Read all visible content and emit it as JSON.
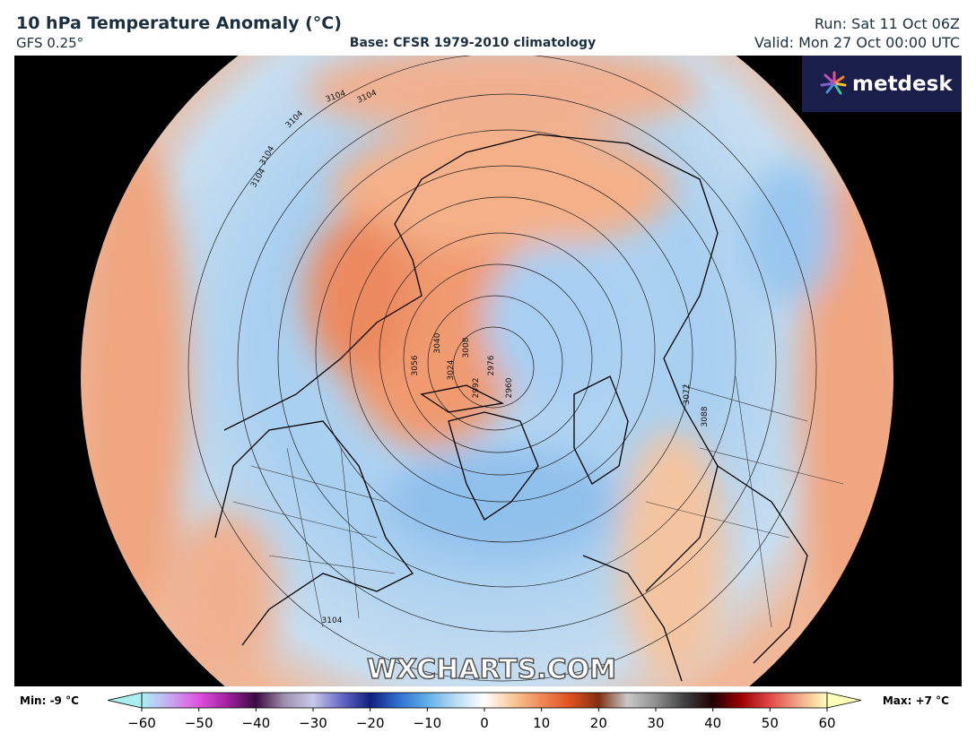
{
  "header": {
    "title": "10 hPa Temperature Anomaly (°C)",
    "model": "GFS 0.25°",
    "base": "Base: CFSR 1979-2010 climatology",
    "run": "Run: Sat 11 Oct 06Z",
    "valid": "Valid: Mon 27 Oct 00:00 UTC"
  },
  "logo": "metdesk",
  "watermark": "WXCHARTS.COM",
  "map": {
    "contour_labels": [
      "3104",
      "3104",
      "3104",
      "3104",
      "3104",
      "3056",
      "3040",
      "3024",
      "3008",
      "2992",
      "2976",
      "2960",
      "3072",
      "3088",
      "3104"
    ]
  },
  "colorbar": {
    "min_label": "Min: -9 °C",
    "max_label": "Max: +7 °C",
    "range": [
      -60,
      60
    ],
    "ticks": [
      {
        "value": -60,
        "label": "−60"
      },
      {
        "value": -50,
        "label": "−50"
      },
      {
        "value": -40,
        "label": "−40"
      },
      {
        "value": -30,
        "label": "−30"
      },
      {
        "value": -20,
        "label": "−20"
      },
      {
        "value": -10,
        "label": "−10"
      },
      0,
      10,
      20,
      30,
      40,
      50,
      60
    ],
    "colors": [
      "#a8f0f0",
      "#c8a8f0",
      "#e050e0",
      "#a020a0",
      "#3a0a40",
      "#a090b0",
      "#c8c8e8",
      "#6868c8",
      "#102080",
      "#3070d0",
      "#60b0e8",
      "#b8dcf4",
      "#ffffff",
      "#f8c898",
      "#f08858",
      "#e05020",
      "#803010",
      "#c8c8c8",
      "#909090",
      "#404040",
      "#200000",
      "#a00000",
      "#e04848",
      "#f0a888",
      "#ffffb8"
    ]
  }
}
